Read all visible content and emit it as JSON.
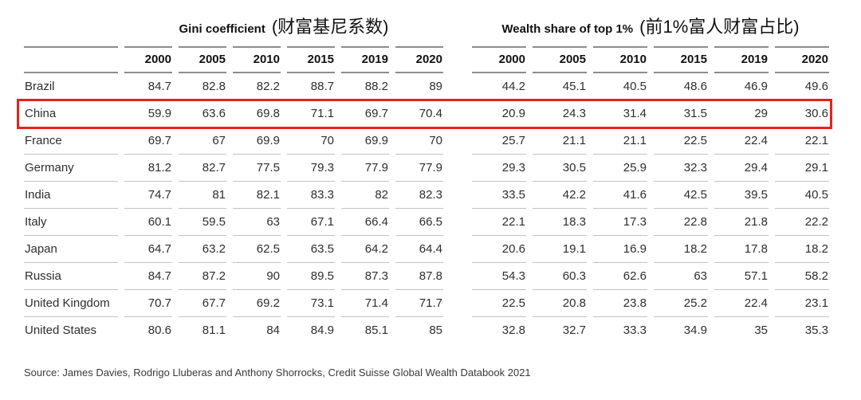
{
  "table": {
    "group_headers": [
      {
        "title_en": "Gini coefficient",
        "title_zh": "(财富基尼系数)"
      },
      {
        "title_en": "Wealth share of top 1%",
        "title_zh": "(前1%富人财富占比)"
      }
    ],
    "years": [
      "2000",
      "2005",
      "2010",
      "2015",
      "2019",
      "2020"
    ],
    "rows": [
      {
        "country": "Brazil",
        "highlighted": false,
        "gini": [
          "84.7",
          "82.8",
          "82.2",
          "88.7",
          "88.2",
          "89"
        ],
        "wealth": [
          "44.2",
          "45.1",
          "40.5",
          "48.6",
          "46.9",
          "49.6"
        ]
      },
      {
        "country": "China",
        "highlighted": true,
        "gini": [
          "59.9",
          "63.6",
          "69.8",
          "71.1",
          "69.7",
          "70.4"
        ],
        "wealth": [
          "20.9",
          "24.3",
          "31.4",
          "31.5",
          "29",
          "30.6"
        ]
      },
      {
        "country": "France",
        "highlighted": false,
        "gini": [
          "69.7",
          "67",
          "69.9",
          "70",
          "69.9",
          "70"
        ],
        "wealth": [
          "25.7",
          "21.1",
          "21.1",
          "22.5",
          "22.4",
          "22.1"
        ]
      },
      {
        "country": "Germany",
        "highlighted": false,
        "gini": [
          "81.2",
          "82.7",
          "77.5",
          "79.3",
          "77.9",
          "77.9"
        ],
        "wealth": [
          "29.3",
          "30.5",
          "25.9",
          "32.3",
          "29.4",
          "29.1"
        ]
      },
      {
        "country": "India",
        "highlighted": false,
        "gini": [
          "74.7",
          "81",
          "82.1",
          "83.3",
          "82",
          "82.3"
        ],
        "wealth": [
          "33.5",
          "42.2",
          "41.6",
          "42.5",
          "39.5",
          "40.5"
        ]
      },
      {
        "country": "Italy",
        "highlighted": false,
        "gini": [
          "60.1",
          "59.5",
          "63",
          "67.1",
          "66.4",
          "66.5"
        ],
        "wealth": [
          "22.1",
          "18.3",
          "17.3",
          "22.8",
          "21.8",
          "22.2"
        ]
      },
      {
        "country": "Japan",
        "highlighted": false,
        "gini": [
          "64.7",
          "63.2",
          "62.5",
          "63.5",
          "64.2",
          "64.4"
        ],
        "wealth": [
          "20.6",
          "19.1",
          "16.9",
          "18.2",
          "17.8",
          "18.2"
        ]
      },
      {
        "country": "Russia",
        "highlighted": false,
        "gini": [
          "84.7",
          "87.2",
          "90",
          "89.5",
          "87.3",
          "87.8"
        ],
        "wealth": [
          "54.3",
          "60.3",
          "62.6",
          "63",
          "57.1",
          "58.2"
        ]
      },
      {
        "country": "United Kingdom",
        "highlighted": false,
        "gini": [
          "70.7",
          "67.7",
          "69.2",
          "73.1",
          "71.4",
          "71.7"
        ],
        "wealth": [
          "22.5",
          "20.8",
          "23.8",
          "25.2",
          "22.4",
          "23.1"
        ]
      },
      {
        "country": "United States",
        "highlighted": false,
        "gini": [
          "80.6",
          "81.1",
          "84",
          "84.9",
          "85.1",
          "85"
        ],
        "wealth": [
          "32.8",
          "32.7",
          "33.3",
          "34.9",
          "35",
          "35.3"
        ]
      }
    ]
  },
  "source": "Source: James Davies, Rodrigo Lluberas and Anthony Shorrocks, Credit Suisse Global Wealth Databook 2021",
  "colors": {
    "highlight_border": "#e3231d",
    "rule_dark": "#8c8c8c",
    "rule_light": "#c3c3c3"
  }
}
